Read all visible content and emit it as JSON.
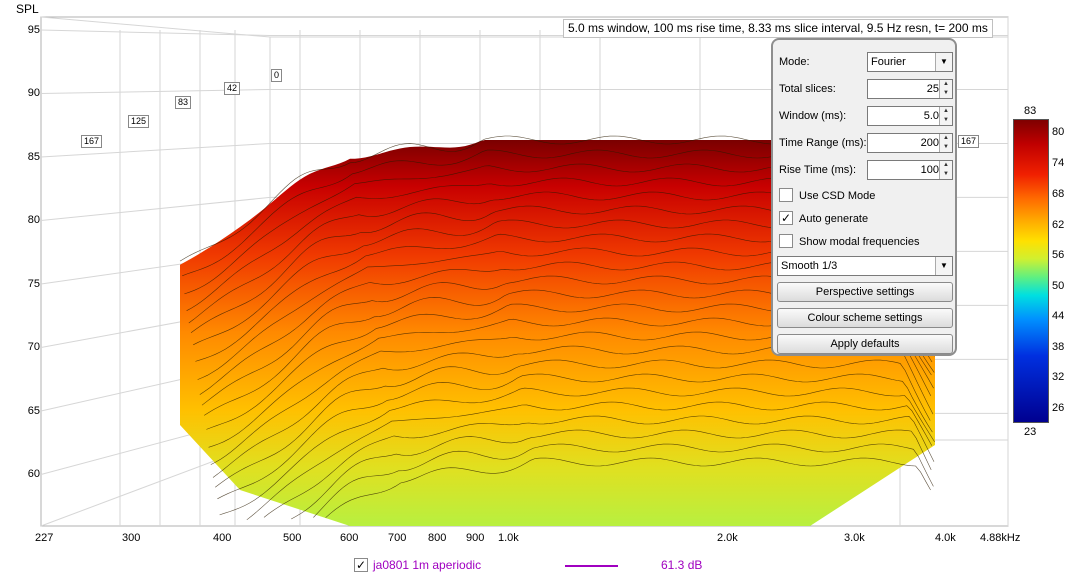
{
  "axis": {
    "y_title": "SPL",
    "y_ticks": [
      "95",
      "90",
      "85",
      "80",
      "75",
      "70",
      "65",
      "60"
    ],
    "x_ticks": [
      "227",
      "300",
      "400",
      "500",
      "600",
      "700",
      "800",
      "900",
      "1.0k",
      "2.0k",
      "3.0k",
      "4.0k",
      "4.88kHz"
    ]
  },
  "time_markers": [
    "0",
    "42",
    "83",
    "125",
    "167",
    "167"
  ],
  "info_text": "5.0 ms window, 100 ms rise time, 8.33 ms slice interval, 9.5 Hz resn, t= 200 ms",
  "panel": {
    "mode_label": "Mode:",
    "mode_value": "Fourier",
    "total_slices_label": "Total slices:",
    "total_slices_value": "25",
    "window_label": "Window (ms):",
    "window_value": "5.0",
    "time_range_label": "Time Range (ms):",
    "time_range_value": "200",
    "rise_time_label": "Rise Time (ms):",
    "rise_time_value": "100",
    "use_csd_label": "Use CSD Mode",
    "use_csd_checked": false,
    "auto_generate_label": "Auto generate",
    "auto_generate_checked": true,
    "show_modal_label": "Show modal frequencies",
    "show_modal_checked": false,
    "smoothing_value": "Smooth 1/3",
    "perspective_button": "Perspective settings",
    "colour_scheme_button": "Colour scheme settings",
    "apply_defaults_button": "Apply defaults"
  },
  "colorbar": {
    "top": "83",
    "bottom": "23",
    "ticks": [
      "80",
      "74",
      "68",
      "62",
      "56",
      "50",
      "44",
      "38",
      "32",
      "26"
    ]
  },
  "legend": {
    "checked": true,
    "name": "ja0801 1m aperiodic",
    "value": "61.3 dB",
    "color": "#a000c0"
  },
  "colors": {
    "grid": "#d4d4d4",
    "waterfall_top": "#8a0000",
    "waterfall_bottom": "#c8f040"
  }
}
